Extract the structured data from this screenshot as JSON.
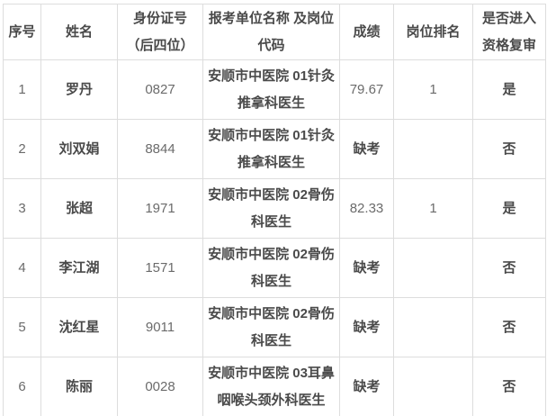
{
  "colors": {
    "background": "#ffffff",
    "border": "#dddddd",
    "text_primary": "#4a4a4a",
    "text_numeric": "#6b6b6b"
  },
  "table": {
    "columns": [
      {
        "key": "index",
        "label": "序号"
      },
      {
        "key": "name",
        "label": "姓名"
      },
      {
        "key": "id4",
        "label": "身份证号（后四位）"
      },
      {
        "key": "unit",
        "label": "报考单位名称 及岗位代码"
      },
      {
        "key": "score",
        "label": "成绩"
      },
      {
        "key": "rank",
        "label": "岗位排名"
      },
      {
        "key": "review",
        "label": "是否进入资格复审"
      }
    ],
    "rows": [
      [
        "1",
        "罗丹",
        "0827",
        "安顺市中医院 01针灸推拿科医生",
        "79.67",
        "1",
        "是"
      ],
      [
        "2",
        "刘双娟",
        "8844",
        "安顺市中医院 01针灸推拿科医生",
        "缺考",
        "",
        "否"
      ],
      [
        "3",
        "张超",
        "1971",
        "安顺市中医院 02骨伤科医生",
        "82.33",
        "1",
        "是"
      ],
      [
        "4",
        "李江湖",
        "1571",
        "安顺市中医院 02骨伤科医生",
        "缺考",
        "",
        "否"
      ],
      [
        "5",
        "沈红星",
        "9011",
        "安顺市中医院 02骨伤科医生",
        "缺考",
        "",
        "否"
      ],
      [
        "6",
        "陈丽",
        "0028",
        "安顺市中医院 03耳鼻咽喉头颈外科医生",
        "缺考",
        "",
        "否"
      ]
    ]
  }
}
